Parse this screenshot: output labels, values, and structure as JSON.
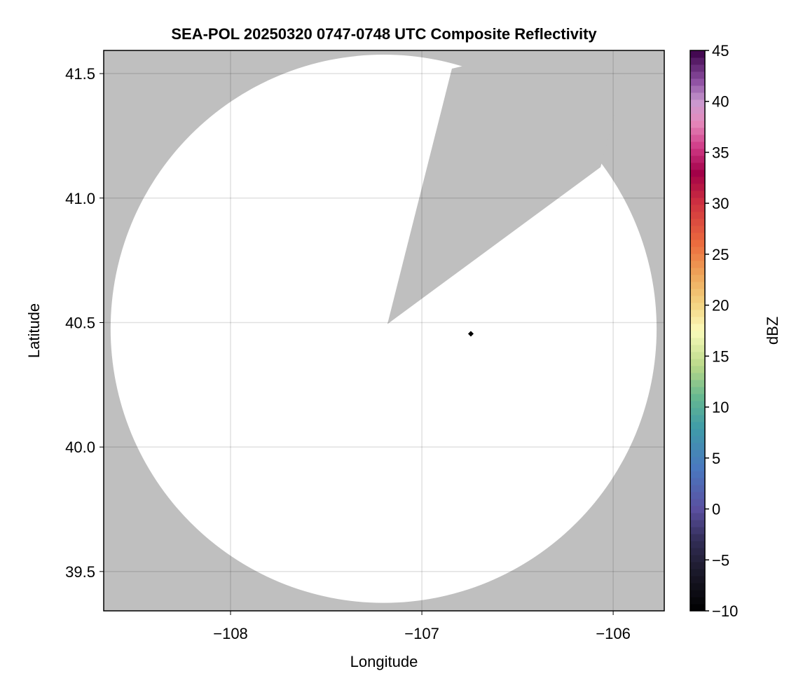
{
  "chart_data": {
    "type": "heatmap",
    "title": "SEA-POL 20250320 0747-0748 UTC Composite Reflectivity",
    "xlabel": "Longitude",
    "ylabel": "Latitude",
    "xlim": [
      -108.663,
      -105.733
    ],
    "ylim": [
      39.342,
      41.593
    ],
    "xticks": [
      -108,
      -107,
      -106
    ],
    "xtick_labels": [
      "−108",
      "−107",
      "−106"
    ],
    "yticks": [
      39.5,
      40.0,
      40.5,
      41.0,
      41.5
    ],
    "ytick_labels": [
      "39.5",
      "40.0",
      "40.5",
      "41.0",
      "41.5"
    ],
    "grid": true,
    "background_color": "#bfbfbf",
    "coverage_color": "#ffffff",
    "coverage": {
      "center_lon": -107.2,
      "center_lat": 40.475,
      "radius_lon_deg": 1.427,
      "radius_lat_deg": 1.101
    },
    "blocked_sector": [
      {
        "lon": -107.18,
        "lat": 40.494
      },
      {
        "lon": -106.843,
        "lat": 41.52
      },
      {
        "lon": -106.4,
        "lat": 41.6
      },
      {
        "lon": -105.9,
        "lat": 41.6
      },
      {
        "lon": -106.066,
        "lat": 41.124
      }
    ],
    "marker": {
      "lon": -106.744,
      "lat": 40.455,
      "shape": "diamond",
      "color": "#000000"
    },
    "colorbar": {
      "label": "dBZ",
      "range": [
        -10,
        45
      ],
      "ticks": [
        -10,
        -5,
        0,
        5,
        10,
        15,
        20,
        25,
        30,
        35,
        40,
        45
      ],
      "tick_labels": [
        "−10",
        "−5",
        "0",
        "5",
        "10",
        "15",
        "20",
        "25",
        "30",
        "35",
        "40",
        "45"
      ],
      "bins": 80,
      "colormap": [
        [
          -10,
          "#000000"
        ],
        [
          -6,
          "#1c1a2c"
        ],
        [
          -3,
          "#332e58"
        ],
        [
          0,
          "#5a4fa0"
        ],
        [
          4,
          "#4a78c0"
        ],
        [
          8,
          "#3f9ca8"
        ],
        [
          11,
          "#66b890"
        ],
        [
          14,
          "#b8d888"
        ],
        [
          17.5,
          "#fbfbbb"
        ],
        [
          20,
          "#f3d583"
        ],
        [
          23,
          "#eea55a"
        ],
        [
          26,
          "#ec6d3e"
        ],
        [
          30,
          "#cf3240"
        ],
        [
          33,
          "#a20048"
        ],
        [
          35.5,
          "#cf3a86"
        ],
        [
          38,
          "#e58bbd"
        ],
        [
          40,
          "#c999cf"
        ],
        [
          42,
          "#8e50a2"
        ],
        [
          45,
          "#3a0048"
        ]
      ]
    }
  }
}
